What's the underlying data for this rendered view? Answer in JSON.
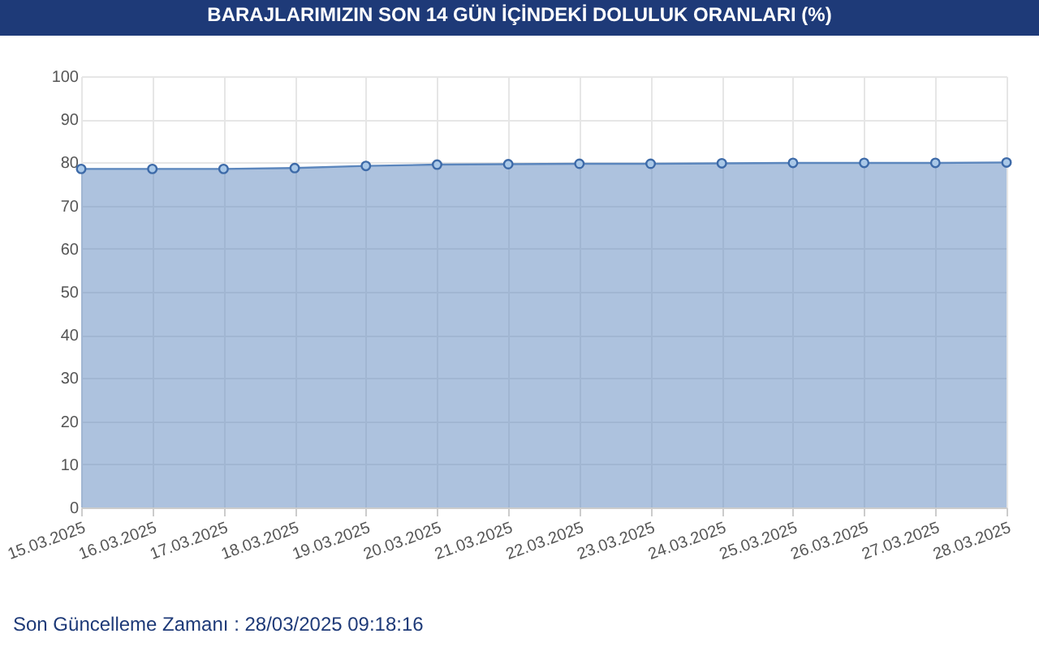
{
  "chart_data": {
    "type": "area",
    "title": "BARAJLARIMIZIN SON 14 GÜN İÇİNDEKİ DOLULUK ORANLARI (%)",
    "categories": [
      "15.03.2025",
      "16.03.2025",
      "17.03.2025",
      "18.03.2025",
      "19.03.2025",
      "20.03.2025",
      "21.03.2025",
      "22.03.2025",
      "23.03.2025",
      "24.03.2025",
      "25.03.2025",
      "26.03.2025",
      "27.03.2025",
      "28.03.2025"
    ],
    "series": [
      {
        "color": "#5b86bd",
        "values": [
          78.5,
          78.5,
          78.5,
          78.7,
          79.2,
          79.5,
          79.6,
          79.7,
          79.7,
          79.8,
          79.9,
          79.9,
          79.9,
          80.0
        ]
      }
    ],
    "ylim": [
      0,
      100
    ],
    "yticks": [
      0,
      10,
      20,
      30,
      40,
      50,
      60,
      70,
      80,
      90,
      100
    ],
    "grid": true,
    "marker": "circle",
    "annotations": [
      "Son Güncelleme Zamanı : 28/03/2025 09:18:16"
    ]
  }
}
